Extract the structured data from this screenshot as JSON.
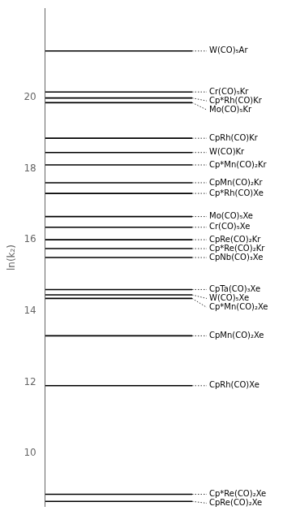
{
  "chart_data": {
    "type": "levels",
    "ylabel": "ln(k₂)",
    "categories": [
      "W(CO)₅Ar",
      "Cr(CO)₅Kr",
      "Cp*Rh(CO)Kr",
      "Mo(CO)₅Kr",
      "CpRh(CO)Kr",
      "W(CO)Kr",
      "Cp*Mn(CO)₂Kr",
      "CpMn(CO)₂Kr",
      "Cp*Rh(CO)Xe",
      "Mo(CO)₅Xe",
      "Cr(CO)₅Xe",
      "CpRe(CO)₂Kr",
      "Cp*Re(CO)₂Kr",
      "CpNb(CO)₃Xe",
      "CpTa(CO)₃Xe",
      "W(CO)₅Xe",
      "Cp*Mn(CO)₂Xe",
      "CpMn(CO)₂Xe",
      "CpRh(CO)Xe",
      "Cp*Re(CO)₂Xe",
      "CpRe(CO)₂Xe"
    ],
    "values": [
      21.3,
      20.15,
      19.98,
      19.85,
      18.85,
      18.45,
      18.1,
      17.6,
      17.3,
      16.65,
      16.35,
      16.0,
      15.75,
      15.5,
      14.6,
      14.45,
      14.35,
      13.3,
      11.9,
      8.85,
      8.65
    ],
    "color": "#000000",
    "ylim": [
      8.5,
      22.5
    ],
    "yticks": [
      10,
      12,
      14,
      16,
      18,
      20
    ],
    "grid": false,
    "tick_labels": "y"
  }
}
